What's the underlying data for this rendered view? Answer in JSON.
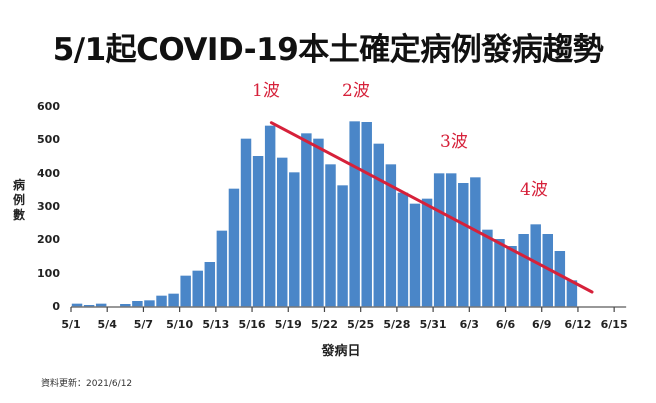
{
  "title": "5/1起COVID-19本土確定病例發病趨勢",
  "footer": "資料更新：2021/6/12",
  "colors": {
    "bar": "#4a86c8",
    "trend": "#d6213a",
    "axis": "#777777"
  },
  "chart_data": {
    "type": "bar",
    "title": "5/1起COVID-19本土確定病例發病趨勢",
    "xlabel": "發病日",
    "ylabel": "病例數",
    "ylim": [
      0,
      600
    ],
    "yticks": [
      0,
      100,
      200,
      300,
      400,
      500,
      600
    ],
    "xtick_labels": [
      "5/1",
      "5/4",
      "5/7",
      "5/10",
      "5/13",
      "5/16",
      "5/19",
      "5/22",
      "5/25",
      "5/28",
      "5/31",
      "6/3",
      "6/6",
      "6/9",
      "6/12",
      "6/15"
    ],
    "grid": false,
    "categories": [
      "5/1",
      "5/2",
      "5/3",
      "5/4",
      "5/5",
      "5/6",
      "5/7",
      "5/8",
      "5/9",
      "5/10",
      "5/11",
      "5/12",
      "5/13",
      "5/14",
      "5/15",
      "5/16",
      "5/17",
      "5/18",
      "5/19",
      "5/20",
      "5/21",
      "5/22",
      "5/23",
      "5/24",
      "5/25",
      "5/26",
      "5/27",
      "5/28",
      "5/29",
      "5/30",
      "5/31",
      "6/1",
      "6/2",
      "6/3",
      "6/4",
      "6/5",
      "6/6",
      "6/7",
      "6/8",
      "6/9",
      "6/10",
      "6/11"
    ],
    "values": [
      10,
      6,
      10,
      0,
      9,
      18,
      20,
      34,
      40,
      94,
      109,
      135,
      229,
      355,
      505,
      453,
      544,
      448,
      404,
      521,
      505,
      428,
      365,
      557,
      555,
      490,
      428,
      343,
      310,
      325,
      401,
      401,
      372,
      389,
      232,
      204,
      183,
      219,
      248,
      219,
      168,
      80
    ],
    "trend_line": {
      "from": {
        "date": "5/17",
        "value": 553
      },
      "to": {
        "date": "6/13",
        "value": 45
      },
      "color": "#d6213a"
    },
    "annotations": [
      {
        "text": "1波",
        "near": "5/17"
      },
      {
        "text": "2波",
        "near": "5/24"
      },
      {
        "text": "3波",
        "near": "6/1"
      },
      {
        "text": "4波",
        "near": "6/8"
      }
    ]
  }
}
